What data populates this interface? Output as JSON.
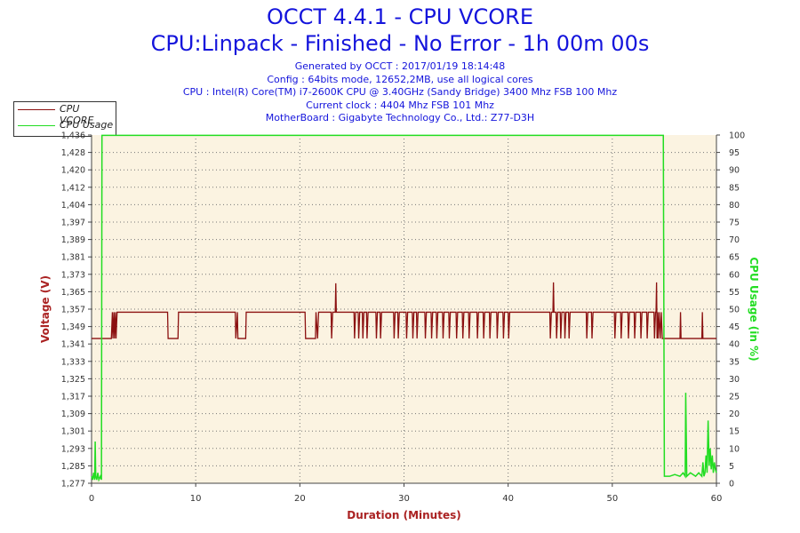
{
  "chart_data": {
    "type": "line",
    "title": "OCCT 4.4.1 - CPU VCORE",
    "subtitle": "CPU:Linpack - Finished - No Error - 1h 00m 00s",
    "info_lines": [
      "Generated by OCCT : 2017/01/19 18:14:48",
      "Config : 64bits mode, 12652,2MB, use all logical cores",
      "CPU : Intel(R) Core(TM) i7-2600K CPU @ 3.40GHz (Sandy Bridge) 3400 Mhz FSB 100 Mhz",
      "Current clock : 4404 Mhz FSB 101 Mhz",
      "MotherBoard : Gigabyte Technology Co., Ltd.: Z77-D3H"
    ],
    "xlabel": "Duration (Minutes)",
    "ylabel_left": "Voltage (V)",
    "ylabel_right": "CPU Usage (in %)",
    "xlim": [
      0,
      60
    ],
    "ylim_left": [
      1.277,
      1.436
    ],
    "ylim_right": [
      0,
      100
    ],
    "x_ticks": [
      "0",
      "10",
      "20",
      "30",
      "40",
      "50",
      "60"
    ],
    "y_ticks_left": [
      "1,277",
      "1,285",
      "1,293",
      "1,301",
      "1,309",
      "1,317",
      "1,325",
      "1,333",
      "1,341",
      "1,349",
      "1,357",
      "1,365",
      "1,373",
      "1,381",
      "1,389",
      "1,397",
      "1,404",
      "1,412",
      "1,420",
      "1,428",
      "1,436"
    ],
    "y_ticks_right": [
      "0",
      "5",
      "10",
      "15",
      "20",
      "25",
      "30",
      "35",
      "40",
      "45",
      "50",
      "55",
      "60",
      "65",
      "70",
      "75",
      "80",
      "85",
      "90",
      "95",
      "100"
    ],
    "grid": true,
    "legend_position": "top-left",
    "series": [
      {
        "name": "CPU VCORE",
        "color": "#8b1010",
        "points": [
          [
            0,
            1.3431
          ],
          [
            0.2,
            1.3431
          ],
          [
            0.4,
            1.3431
          ],
          [
            0.8,
            1.3431
          ],
          [
            1.4,
            1.3431
          ],
          [
            1.9,
            1.3431
          ],
          [
            2.0,
            1.3551
          ],
          [
            2.05,
            1.3431
          ],
          [
            2.15,
            1.3551
          ],
          [
            2.2,
            1.3431
          ],
          [
            2.3,
            1.3551
          ],
          [
            2.35,
            1.3431
          ],
          [
            2.45,
            1.3551
          ],
          [
            7.3,
            1.3551
          ],
          [
            7.35,
            1.3431
          ],
          [
            8.3,
            1.3431
          ],
          [
            8.35,
            1.3551
          ],
          [
            13.8,
            1.3551
          ],
          [
            13.85,
            1.3431
          ],
          [
            14.0,
            1.3551
          ],
          [
            14.05,
            1.3431
          ],
          [
            14.8,
            1.3431
          ],
          [
            14.85,
            1.3551
          ],
          [
            20.5,
            1.3551
          ],
          [
            20.55,
            1.3431
          ],
          [
            21.5,
            1.3431
          ],
          [
            21.55,
            1.3551
          ],
          [
            21.7,
            1.3431
          ],
          [
            21.8,
            1.3551
          ],
          [
            23.0,
            1.3551
          ],
          [
            23.05,
            1.3431
          ],
          [
            23.15,
            1.3551
          ],
          [
            23.4,
            1.3551
          ],
          [
            23.45,
            1.3683
          ],
          [
            23.5,
            1.3551
          ],
          [
            24.3,
            1.3551
          ],
          [
            25.2,
            1.3551
          ],
          [
            25.25,
            1.3431
          ],
          [
            25.35,
            1.3551
          ],
          [
            25.6,
            1.3551
          ],
          [
            25.65,
            1.3431
          ],
          [
            25.75,
            1.3551
          ],
          [
            26.0,
            1.3551
          ],
          [
            26.05,
            1.3431
          ],
          [
            26.15,
            1.3551
          ],
          [
            26.4,
            1.3551
          ],
          [
            26.45,
            1.3431
          ],
          [
            26.55,
            1.3551
          ],
          [
            27.3,
            1.3551
          ],
          [
            27.35,
            1.3431
          ],
          [
            27.45,
            1.3551
          ],
          [
            27.7,
            1.3551
          ],
          [
            27.75,
            1.3431
          ],
          [
            27.85,
            1.3551
          ],
          [
            29.0,
            1.3551
          ],
          [
            29.05,
            1.3431
          ],
          [
            29.15,
            1.3551
          ],
          [
            29.4,
            1.3551
          ],
          [
            29.45,
            1.3431
          ],
          [
            29.55,
            1.3551
          ],
          [
            30.2,
            1.3551
          ],
          [
            30.25,
            1.3431
          ],
          [
            30.35,
            1.3551
          ],
          [
            30.8,
            1.3551
          ],
          [
            30.85,
            1.3431
          ],
          [
            30.95,
            1.3551
          ],
          [
            31.2,
            1.3551
          ],
          [
            31.25,
            1.3431
          ],
          [
            31.35,
            1.3551
          ],
          [
            32.0,
            1.3551
          ],
          [
            32.05,
            1.3431
          ],
          [
            32.15,
            1.3551
          ],
          [
            32.6,
            1.3551
          ],
          [
            32.65,
            1.3431
          ],
          [
            32.75,
            1.3551
          ],
          [
            33.1,
            1.3551
          ],
          [
            33.15,
            1.3431
          ],
          [
            33.25,
            1.3551
          ],
          [
            33.7,
            1.3551
          ],
          [
            33.75,
            1.3431
          ],
          [
            33.85,
            1.3551
          ],
          [
            34.3,
            1.3551
          ],
          [
            34.35,
            1.3431
          ],
          [
            34.45,
            1.3551
          ],
          [
            35.0,
            1.3551
          ],
          [
            35.05,
            1.3431
          ],
          [
            35.15,
            1.3551
          ],
          [
            35.6,
            1.3551
          ],
          [
            35.65,
            1.3431
          ],
          [
            35.75,
            1.3551
          ],
          [
            36.2,
            1.3551
          ],
          [
            36.25,
            1.3431
          ],
          [
            36.35,
            1.3551
          ],
          [
            37.0,
            1.3551
          ],
          [
            37.05,
            1.3431
          ],
          [
            37.15,
            1.3551
          ],
          [
            37.6,
            1.3551
          ],
          [
            37.65,
            1.3431
          ],
          [
            37.75,
            1.3551
          ],
          [
            38.2,
            1.3551
          ],
          [
            38.25,
            1.3431
          ],
          [
            38.35,
            1.3551
          ],
          [
            38.9,
            1.3551
          ],
          [
            38.95,
            1.3431
          ],
          [
            39.05,
            1.3551
          ],
          [
            39.5,
            1.3551
          ],
          [
            39.55,
            1.3431
          ],
          [
            39.65,
            1.3551
          ],
          [
            40.0,
            1.3551
          ],
          [
            40.05,
            1.3431
          ],
          [
            40.15,
            1.3551
          ],
          [
            41.5,
            1.3551
          ],
          [
            42.0,
            1.3551
          ],
          [
            44.0,
            1.3551
          ],
          [
            44.05,
            1.3431
          ],
          [
            44.15,
            1.3551
          ],
          [
            44.3,
            1.3551
          ],
          [
            44.35,
            1.3687
          ],
          [
            44.4,
            1.3551
          ],
          [
            44.6,
            1.3551
          ],
          [
            44.65,
            1.3431
          ],
          [
            44.75,
            1.3551
          ],
          [
            45.0,
            1.3551
          ],
          [
            45.05,
            1.3431
          ],
          [
            45.15,
            1.3551
          ],
          [
            45.4,
            1.3551
          ],
          [
            45.45,
            1.3431
          ],
          [
            45.55,
            1.3551
          ],
          [
            45.8,
            1.3551
          ],
          [
            45.85,
            1.3431
          ],
          [
            45.95,
            1.3551
          ],
          [
            46.2,
            1.3551
          ],
          [
            47.5,
            1.3551
          ],
          [
            47.55,
            1.3431
          ],
          [
            47.65,
            1.3551
          ],
          [
            48.0,
            1.3551
          ],
          [
            48.05,
            1.3431
          ],
          [
            48.15,
            1.3551
          ],
          [
            50.2,
            1.3551
          ],
          [
            50.25,
            1.3431
          ],
          [
            50.35,
            1.3551
          ],
          [
            50.8,
            1.3551
          ],
          [
            50.85,
            1.3431
          ],
          [
            50.95,
            1.3551
          ],
          [
            51.5,
            1.3551
          ],
          [
            51.55,
            1.3431
          ],
          [
            51.65,
            1.3551
          ],
          [
            52.1,
            1.3551
          ],
          [
            52.15,
            1.3431
          ],
          [
            52.25,
            1.3551
          ],
          [
            52.7,
            1.3551
          ],
          [
            52.75,
            1.3431
          ],
          [
            52.85,
            1.3551
          ],
          [
            53.3,
            1.3551
          ],
          [
            53.35,
            1.3431
          ],
          [
            53.45,
            1.3551
          ],
          [
            54.0,
            1.3551
          ],
          [
            54.05,
            1.3431
          ],
          [
            54.15,
            1.3551
          ],
          [
            54.2,
            1.3551
          ],
          [
            54.25,
            1.3687
          ],
          [
            54.3,
            1.3431
          ],
          [
            54.35,
            1.3551
          ],
          [
            54.4,
            1.3431
          ],
          [
            54.5,
            1.3551
          ],
          [
            54.6,
            1.3431
          ],
          [
            54.7,
            1.3551
          ],
          [
            54.8,
            1.3431
          ],
          [
            55.0,
            1.3431
          ],
          [
            55.5,
            1.3431
          ],
          [
            56.5,
            1.3431
          ],
          [
            56.55,
            1.3551
          ],
          [
            56.6,
            1.3431
          ],
          [
            58.6,
            1.3431
          ],
          [
            58.65,
            1.3551
          ],
          [
            58.7,
            1.3431
          ],
          [
            59.4,
            1.3431
          ],
          [
            60,
            1.3431
          ]
        ]
      },
      {
        "name": "CPU Usage",
        "color": "#22dd22",
        "points": [
          [
            0,
            2
          ],
          [
            0.1,
            1
          ],
          [
            0.2,
            3
          ],
          [
            0.3,
            1
          ],
          [
            0.35,
            12
          ],
          [
            0.4,
            2
          ],
          [
            0.5,
            1
          ],
          [
            0.6,
            3
          ],
          [
            0.7,
            1
          ],
          [
            0.85,
            2
          ],
          [
            0.95,
            1
          ],
          [
            1.0,
            99.9
          ],
          [
            54.9,
            99.9
          ],
          [
            55.0,
            2
          ],
          [
            55.5,
            2
          ],
          [
            56.0,
            2.5
          ],
          [
            56.5,
            2
          ],
          [
            56.8,
            3
          ],
          [
            57.0,
            2
          ],
          [
            57.05,
            26
          ],
          [
            57.15,
            2
          ],
          [
            57.5,
            3
          ],
          [
            58.0,
            2
          ],
          [
            58.3,
            3
          ],
          [
            58.6,
            2
          ],
          [
            58.7,
            6
          ],
          [
            58.8,
            2
          ],
          [
            58.9,
            3
          ],
          [
            59.0,
            8
          ],
          [
            59.1,
            3
          ],
          [
            59.2,
            18
          ],
          [
            59.3,
            5
          ],
          [
            59.4,
            10
          ],
          [
            59.5,
            4
          ],
          [
            59.6,
            8
          ],
          [
            59.7,
            3
          ],
          [
            59.8,
            6
          ],
          [
            59.9,
            4
          ],
          [
            60,
            3
          ]
        ]
      }
    ]
  }
}
